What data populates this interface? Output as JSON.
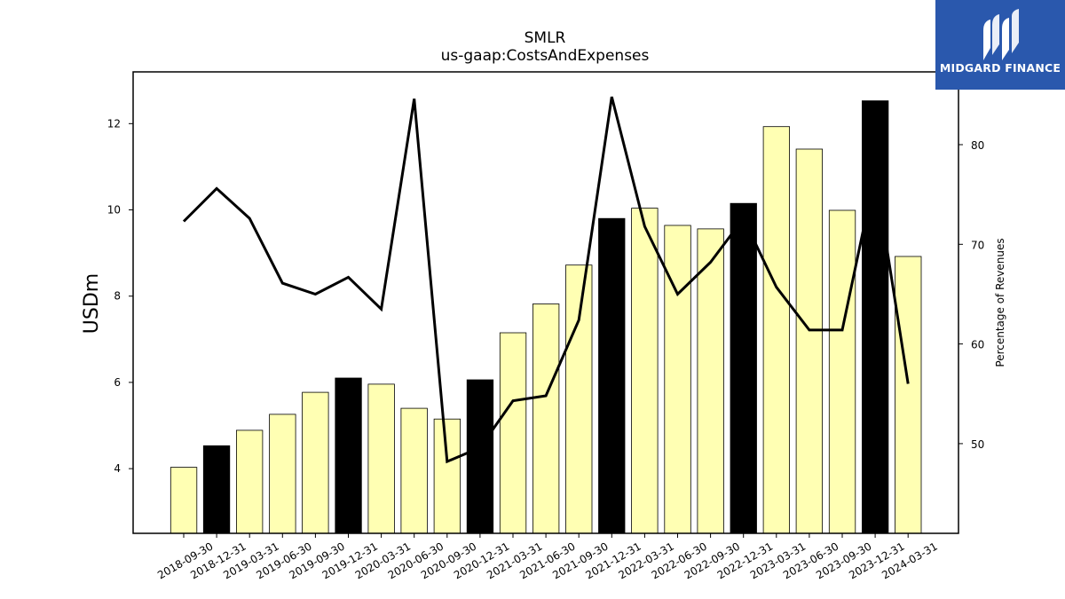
{
  "chart_data": {
    "type": "bar",
    "title": "SMLR",
    "subtitle": "us-gaap:CostsAndExpenses",
    "ylabel": "USDm",
    "y2label": "Percentage of Revenues",
    "ylim": [
      2.5,
      13.2
    ],
    "y2lim": [
      41,
      87.3
    ],
    "yticks": [
      4,
      6,
      8,
      10,
      12
    ],
    "y2ticks": [
      50,
      60,
      70,
      80
    ],
    "categories": [
      "2018-09-30",
      "2018-12-31",
      "2019-03-31",
      "2019-06-30",
      "2019-09-30",
      "2019-12-31",
      "2020-03-31",
      "2020-06-30",
      "2020-09-30",
      "2020-12-31",
      "2021-03-31",
      "2021-06-30",
      "2021-09-30",
      "2021-12-31",
      "2022-03-31",
      "2022-06-30",
      "2022-09-30",
      "2022-12-31",
      "2023-03-31",
      "2023-06-30",
      "2023-09-30",
      "2023-12-31",
      "2024-03-31"
    ],
    "series": [
      {
        "values": [
          4.03,
          4.53,
          4.89,
          5.26,
          5.77,
          6.1,
          5.96,
          5.4,
          5.15,
          6.06,
          7.15,
          7.82,
          8.72,
          9.8,
          10.04,
          9.64,
          9.56,
          10.15,
          11.93,
          11.41,
          9.99,
          12.53,
          8.92
        ],
        "quarter_end": [
          false,
          true,
          false,
          false,
          false,
          true,
          false,
          false,
          false,
          true,
          false,
          false,
          false,
          true,
          false,
          false,
          false,
          true,
          false,
          false,
          false,
          true,
          false
        ]
      },
      {
        "axis": "right",
        "values": [
          72.3,
          75.6,
          72.6,
          66.1,
          65.0,
          66.7,
          63.5,
          84.6,
          48.2,
          49.6,
          54.3,
          54.8,
          62.4,
          84.8,
          71.8,
          65.0,
          68.2,
          72.6,
          65.7,
          61.4,
          61.4,
          77.1,
          56.0
        ]
      }
    ],
    "colors": {
      "bar": "#ffffb3",
      "bar_q4": "#000000",
      "line": "#000000"
    }
  },
  "logo": {
    "text": "MIDGARD FINANCE"
  }
}
